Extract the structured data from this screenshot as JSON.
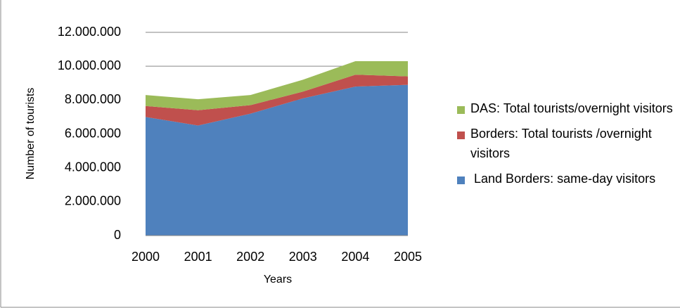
{
  "chart_data": {
    "type": "stacked_area",
    "xlabel": "Years",
    "ylabel": "Number of  tourists",
    "categories": [
      "2000",
      "2001",
      "2002",
      "2003",
      "2004",
      "2005"
    ],
    "series": [
      {
        "name": " Land Borders: same-day visitors",
        "color": "#4f81bd",
        "values": [
          7000000,
          6500000,
          7200000,
          8100000,
          8800000,
          8900000
        ]
      },
      {
        "name": "Borders: Total tourists /overnight visitors",
        "color": "#c0504d",
        "values": [
          650000,
          900000,
          500000,
          400000,
          700000,
          500000
        ]
      },
      {
        "name": "DAS: Total tourists/overnight visitors",
        "color": "#9bbb59",
        "values": [
          650000,
          650000,
          600000,
          700000,
          800000,
          900000
        ]
      }
    ],
    "ylim": [
      0,
      12000000
    ],
    "yticks": [
      0,
      {
        "value": 2000000,
        "label": "2.000.000"
      },
      {
        "value": 4000000,
        "label": "4.000.000"
      },
      {
        "value": 6000000,
        "label": "6.000.000"
      },
      {
        "value": 8000000,
        "label": "8.000.000"
      },
      {
        "value": 10000000,
        "label": "10.000.000"
      },
      {
        "value": 12000000,
        "label": "12.000.000"
      }
    ],
    "grid": true,
    "legend": "right"
  }
}
